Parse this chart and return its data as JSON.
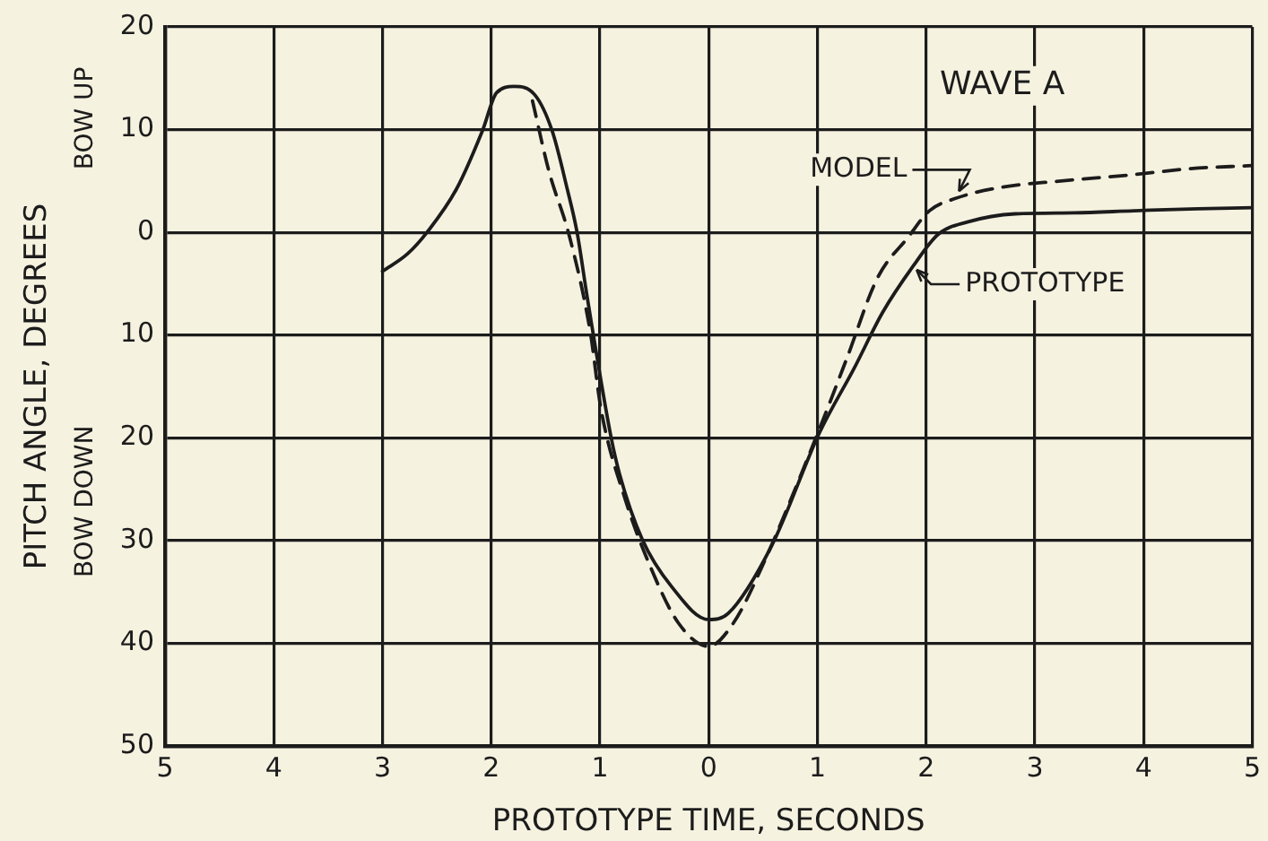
{
  "chart_data": {
    "type": "line",
    "xlabel": "PROTOTYPE TIME, SECONDS",
    "ylabel": "PITCH ANGLE, DEGREES",
    "annotations": [
      "WAVE A",
      "BOW UP",
      "BOW DOWN"
    ],
    "xlim": [
      -5,
      5
    ],
    "xticks": [
      {
        "value": -5,
        "label": "5"
      },
      {
        "value": -4,
        "label": "4"
      },
      {
        "value": -3,
        "label": "3"
      },
      {
        "value": -2,
        "label": "2"
      },
      {
        "value": -1,
        "label": "1"
      },
      0,
      1,
      2,
      3,
      4,
      5
    ],
    "ylim": [
      -50,
      20
    ],
    "yticks": [
      {
        "value": -50,
        "label": "50"
      },
      {
        "value": -40,
        "label": "40"
      },
      {
        "value": -30,
        "label": "30"
      },
      {
        "value": -20,
        "label": "20"
      },
      {
        "value": -10,
        "label": "10"
      },
      0,
      10,
      20
    ],
    "grid": true,
    "series": [
      {
        "name": "MODEL",
        "color": "#1c1c1c",
        "line_style": "dashed",
        "x": [
          -1.62,
          -1.47,
          -1.28,
          -1.09,
          -0.99,
          -0.77,
          -0.55,
          -0.28,
          0.0,
          0.23,
          0.48,
          0.96,
          1.27,
          1.55,
          1.84,
          2.03,
          2.27,
          2.7,
          3.24,
          3.89,
          4.43,
          5.0
        ],
        "values": [
          12.8,
          6.0,
          -0.4,
          -9.6,
          -17.2,
          -25.9,
          -32.2,
          -38.0,
          -40.3,
          -38.0,
          -32.8,
          -20.7,
          -12.3,
          -4.5,
          -0.4,
          2.1,
          3.3,
          4.4,
          5.0,
          5.6,
          6.2,
          6.5
        ]
      },
      {
        "name": "PROTOTYPE",
        "color": "#1c1c1c",
        "line_style": "solid",
        "x": [
          -3.0,
          -2.77,
          -2.59,
          -2.32,
          -2.08,
          -1.95,
          -1.79,
          -1.6,
          -1.44,
          -1.3,
          -1.21,
          -1.12,
          -1.06,
          -0.9,
          -0.82,
          -0.61,
          -0.34,
          0.0,
          0.18,
          0.58,
          1.02,
          1.34,
          1.6,
          1.88,
          2.11,
          2.38,
          2.82,
          3.36,
          3.91,
          4.5,
          5.0
        ],
        "values": [
          -3.8,
          -2.1,
          0.0,
          4.2,
          9.9,
          13.6,
          14.2,
          13.4,
          9.9,
          4.2,
          0.0,
          -6.1,
          -10.0,
          -19.8,
          -23.5,
          -29.9,
          -34.5,
          -37.7,
          -37.1,
          -30.5,
          -19.5,
          -13.2,
          -7.8,
          -3.3,
          -0.2,
          1.0,
          1.8,
          1.9,
          2.1,
          2.3,
          2.4
        ]
      }
    ]
  }
}
